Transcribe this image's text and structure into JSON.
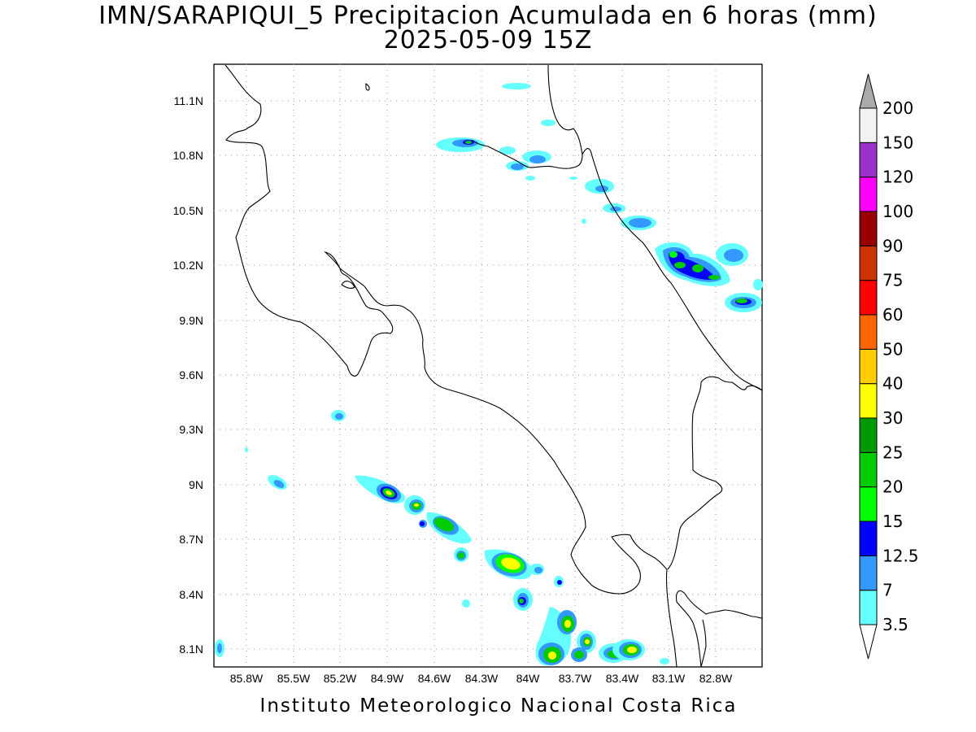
{
  "title": "IMN/SARAPIQUI_5 Precipitacion Acumulada en 6 horas (mm)",
  "subtitle": "2025-05-09 15Z",
  "footer": "Instituto Meteorologico Nacional Costa Rica",
  "lat_labels": [
    "8.1N",
    "8.4N",
    "8.7N",
    "9N",
    "9.3N",
    "9.6N",
    "9.9N",
    "10.2N",
    "10.5N",
    "10.8N",
    "11.1N"
  ],
  "lon_labels": [
    "85.8W",
    "85.5W",
    "85.2W",
    "84.9W",
    "84.6W",
    "84.3W",
    "84W",
    "83.7W",
    "83.4W",
    "83.1W",
    "82.8W"
  ],
  "colorbar": {
    "labels": [
      "3.5",
      "7",
      "12.5",
      "15",
      "20",
      "25",
      "30",
      "40",
      "50",
      "60",
      "75",
      "90",
      "100",
      "120",
      "150",
      "200"
    ],
    "colors": [
      "#ffffff",
      "#66ffff",
      "#3399ff",
      "#0000ff",
      "#00ff00",
      "#00cc00",
      "#009900",
      "#ffff00",
      "#ffcc00",
      "#ff6600",
      "#ff0000",
      "#cc3300",
      "#990000",
      "#ff00ff",
      "#9933cc",
      "#f2f2f2",
      "#aaaaaa"
    ]
  }
}
